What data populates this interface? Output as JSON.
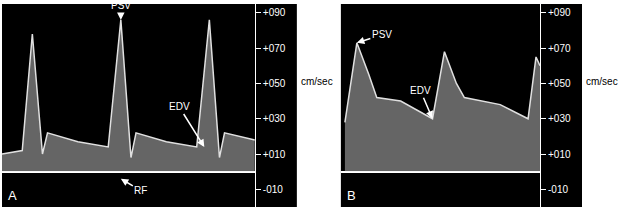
{
  "chart_data": [
    {
      "type": "line",
      "title": "A",
      "ylabel": "cm/sec",
      "color": "#e0e0e0",
      "tick_labels": "y",
      "x": [
        0,
        8,
        12,
        16,
        18,
        30,
        42,
        47,
        51,
        53,
        65,
        77,
        82,
        86,
        88,
        100
      ],
      "values": [
        10,
        12,
        78,
        10,
        22,
        17,
        14,
        86,
        8,
        22,
        17,
        14,
        86,
        8,
        22,
        18
      ],
      "xlim": [
        0,
        100
      ],
      "ylim": [
        -20,
        95
      ],
      "yticks": [
        {
          "value": 90,
          "label": "+090"
        },
        {
          "value": 70,
          "label": "+070"
        },
        {
          "value": 50,
          "label": "+050"
        },
        {
          "value": 30,
          "label": "+030"
        },
        {
          "value": 10,
          "label": "+010"
        },
        {
          "value": -10,
          "label": "-010"
        }
      ],
      "annotations": [
        {
          "text": "PSV",
          "x": 47,
          "y": 86
        },
        {
          "text": "EDV",
          "x": 80,
          "y": 14
        },
        {
          "text": "RF",
          "x": 47,
          "y": -4
        }
      ]
    },
    {
      "type": "line",
      "title": "B",
      "ylabel": "cm/sec",
      "color": "#e0e0e0",
      "tick_labels": "y",
      "x": [
        2,
        8,
        14,
        18,
        30,
        46,
        52,
        58,
        62,
        80,
        94,
        98,
        100
      ],
      "values": [
        28,
        73,
        55,
        42,
        40,
        30,
        68,
        50,
        42,
        38,
        30,
        65,
        60
      ],
      "xlim": [
        0,
        100
      ],
      "ylim": [
        -20,
        95
      ],
      "yticks": [
        {
          "value": 90,
          "label": "+090"
        },
        {
          "value": 70,
          "label": "+070"
        },
        {
          "value": 50,
          "label": "+050"
        },
        {
          "value": 30,
          "label": "+030"
        },
        {
          "value": 10,
          "label": "+010"
        },
        {
          "value": -10,
          "label": "-010"
        }
      ],
      "annotations": [
        {
          "text": "PSV",
          "x": 8,
          "y": 73
        },
        {
          "text": "EDV",
          "x": 46,
          "y": 30
        }
      ]
    }
  ]
}
